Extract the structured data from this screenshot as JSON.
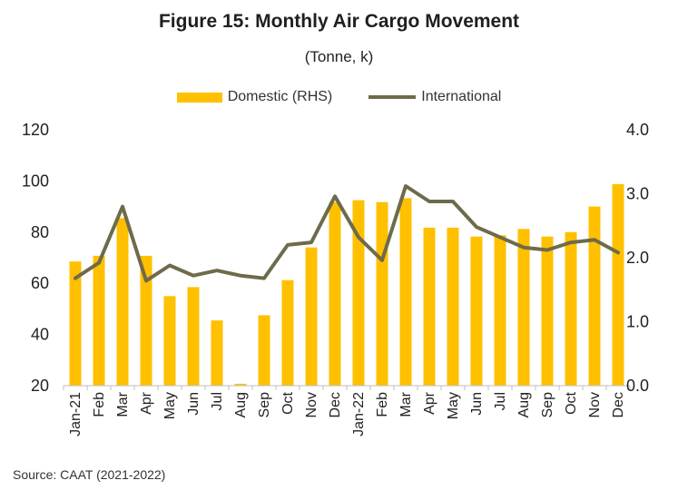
{
  "chart_data": {
    "type": "bar",
    "title": "Figure 15: Monthly Air Cargo Movement",
    "subtitle": "(Tonne, k)",
    "source": "Source: CAAT (2021-2022)",
    "categories": [
      "Jan-21",
      "Feb",
      "Mar",
      "Apr",
      "May",
      "Jun",
      "Jul",
      "Aug",
      "Sep",
      "Oct",
      "Nov",
      "Dec",
      "Jan-22",
      "Feb",
      "Mar",
      "Apr",
      "May",
      "Jun",
      "Jul",
      "Aug",
      "Sep",
      "Oct",
      "Nov",
      "Dec"
    ],
    "y_left": {
      "ticks": [
        "120",
        "100",
        "80",
        "60",
        "40",
        "20"
      ],
      "range": [
        20,
        120
      ]
    },
    "y_right": {
      "ticks": [
        "4.0",
        "3.0",
        "2.0",
        "1.0",
        "0.0"
      ],
      "range": [
        0,
        4
      ]
    },
    "series": [
      {
        "name": "Domestic (RHS)",
        "type": "bar",
        "axis": "right",
        "color": "#FFC000",
        "values": [
          1.94,
          2.03,
          2.62,
          2.03,
          1.4,
          1.54,
          1.02,
          0.03,
          1.1,
          1.65,
          2.16,
          2.87,
          2.9,
          2.87,
          2.93,
          2.47,
          2.47,
          2.33,
          2.35,
          2.45,
          2.33,
          2.4,
          2.8,
          3.15
        ]
      },
      {
        "name": "International",
        "type": "line",
        "axis": "left",
        "color": "#6E6B4A",
        "values": [
          62,
          68,
          90,
          61,
          67,
          63,
          65,
          63,
          62,
          75,
          76,
          94,
          78,
          69,
          98,
          92,
          92,
          82,
          78,
          74,
          73,
          76,
          77,
          72
        ]
      }
    ],
    "legend_position": "top-center",
    "grid": false
  }
}
